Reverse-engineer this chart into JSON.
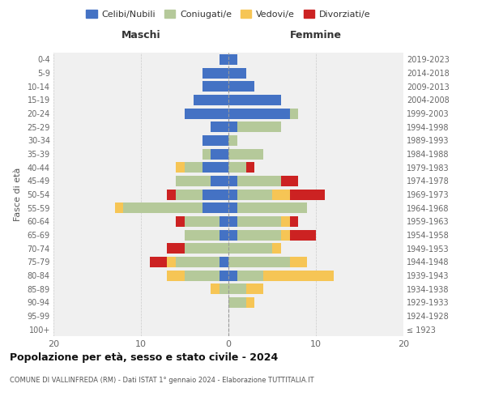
{
  "age_groups": [
    "100+",
    "95-99",
    "90-94",
    "85-89",
    "80-84",
    "75-79",
    "70-74",
    "65-69",
    "60-64",
    "55-59",
    "50-54",
    "45-49",
    "40-44",
    "35-39",
    "30-34",
    "25-29",
    "20-24",
    "15-19",
    "10-14",
    "5-9",
    "0-4"
  ],
  "birth_years": [
    "≤ 1923",
    "1924-1928",
    "1929-1933",
    "1934-1938",
    "1939-1943",
    "1944-1948",
    "1949-1953",
    "1954-1958",
    "1959-1963",
    "1964-1968",
    "1969-1973",
    "1974-1978",
    "1979-1983",
    "1984-1988",
    "1989-1993",
    "1994-1998",
    "1999-2003",
    "2004-2008",
    "2009-2013",
    "2014-2018",
    "2019-2023"
  ],
  "colors": {
    "celibi": "#4472c4",
    "coniugati": "#b5c99a",
    "vedovi": "#f6c555",
    "divorziati": "#cc2222"
  },
  "maschi": {
    "celibi": [
      0,
      0,
      0,
      0,
      1,
      1,
      0,
      1,
      1,
      3,
      3,
      2,
      3,
      2,
      3,
      2,
      5,
      4,
      3,
      3,
      1
    ],
    "coniugati": [
      0,
      0,
      0,
      1,
      4,
      5,
      5,
      4,
      4,
      9,
      3,
      4,
      2,
      1,
      0,
      0,
      0,
      0,
      0,
      0,
      0
    ],
    "vedovi": [
      0,
      0,
      0,
      1,
      2,
      1,
      0,
      0,
      0,
      1,
      0,
      0,
      1,
      0,
      0,
      0,
      0,
      0,
      0,
      0,
      0
    ],
    "divorziati": [
      0,
      0,
      0,
      0,
      0,
      2,
      2,
      0,
      1,
      0,
      1,
      0,
      0,
      0,
      0,
      0,
      0,
      0,
      0,
      0,
      0
    ]
  },
  "femmine": {
    "celibi": [
      0,
      0,
      0,
      0,
      1,
      0,
      0,
      1,
      1,
      1,
      1,
      1,
      0,
      0,
      0,
      1,
      7,
      6,
      3,
      2,
      1
    ],
    "coniugati": [
      0,
      0,
      2,
      2,
      3,
      7,
      5,
      5,
      5,
      8,
      4,
      5,
      2,
      4,
      1,
      5,
      1,
      0,
      0,
      0,
      0
    ],
    "vedovi": [
      0,
      0,
      1,
      2,
      8,
      2,
      1,
      1,
      1,
      0,
      2,
      0,
      0,
      0,
      0,
      0,
      0,
      0,
      0,
      0,
      0
    ],
    "divorziati": [
      0,
      0,
      0,
      0,
      0,
      0,
      0,
      3,
      1,
      0,
      4,
      2,
      1,
      0,
      0,
      0,
      0,
      0,
      0,
      0,
      0
    ]
  },
  "title": "Popolazione per età, sesso e stato civile - 2024",
  "subtitle": "COMUNE DI VALLINFREDA (RM) - Dati ISTAT 1° gennaio 2024 - Elaborazione TUTTITALIA.IT",
  "xlabel_left": "Maschi",
  "xlabel_right": "Femmine",
  "ylabel_left": "Fasce di età",
  "xlim": 20,
  "legend_labels": [
    "Celibi/Nubili",
    "Coniugati/e",
    "Vedovi/e",
    "Divorziati/e"
  ],
  "bg_color": "#ffffff",
  "grid_color": "#cccccc"
}
